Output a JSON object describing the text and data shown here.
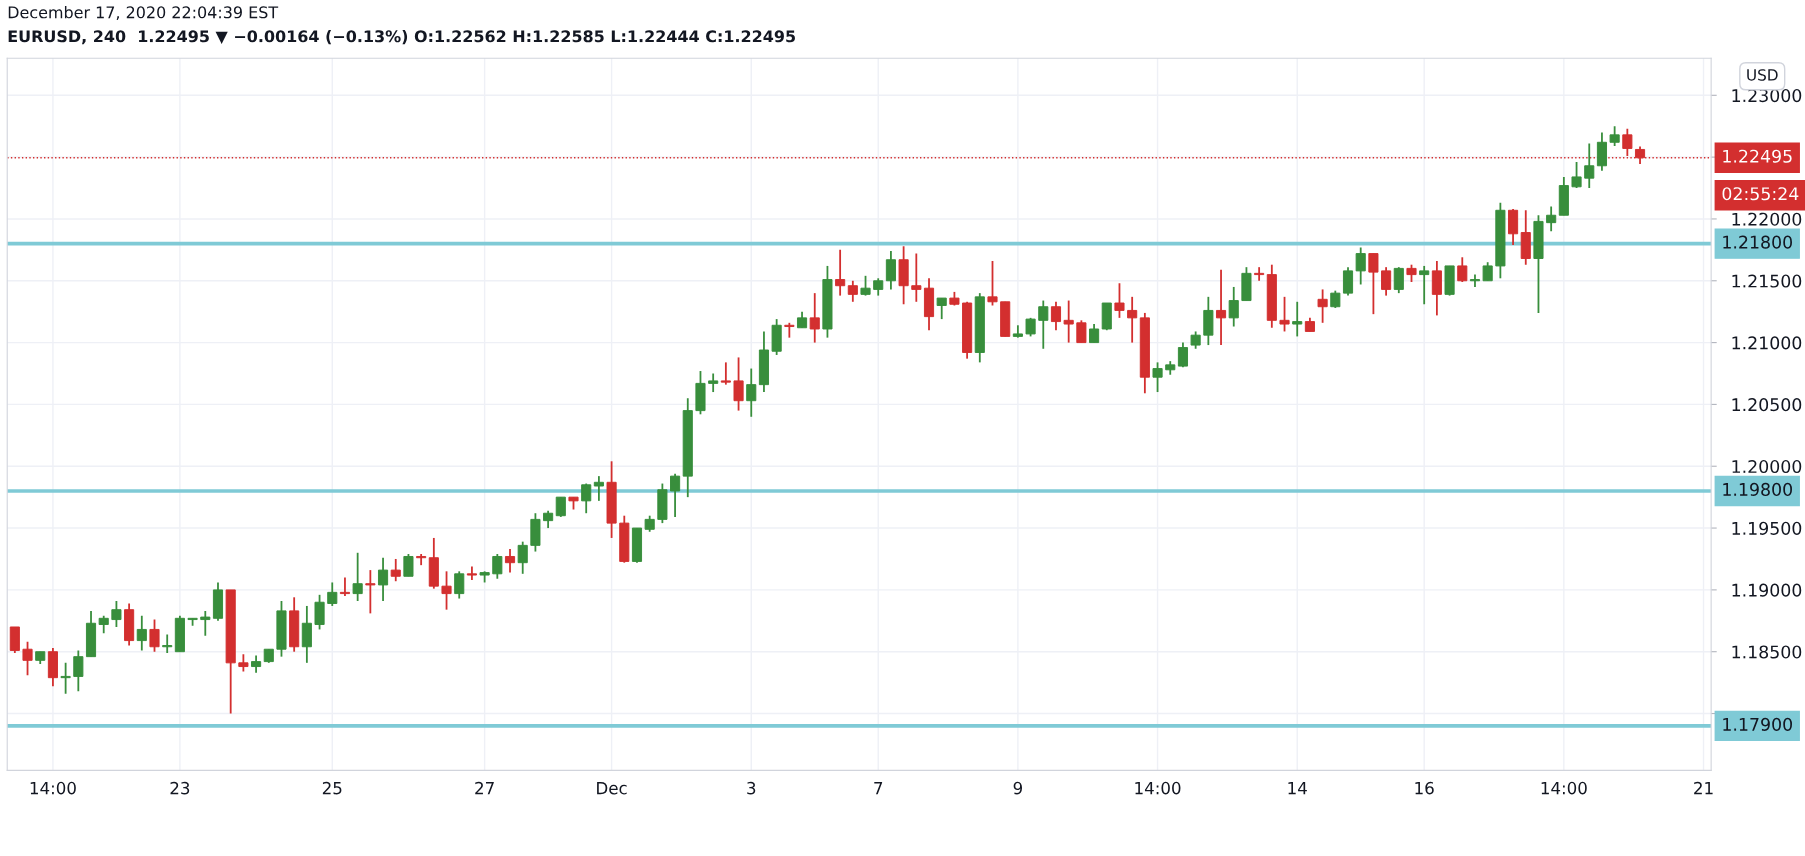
{
  "chart_data": {
    "type": "candlestick",
    "title": "December 17, 2020 22:04:39 EST",
    "subtitle": "EURUSD, 240  1.22495 ▼ −0.00164 (−0.13%) O:1.22562 H:1.22585 L:1.22444 C:1.22495",
    "ylabel": "USD",
    "categories": [
      null,
      null,
      null,
      "14:00",
      null,
      null,
      null,
      null,
      null,
      null,
      null,
      null,
      null,
      "23",
      null,
      null,
      null,
      null,
      null,
      null,
      null,
      null,
      null,
      null,
      null,
      "25",
      null,
      null,
      null,
      null,
      null,
      null,
      null,
      null,
      null,
      null,
      null,
      "27",
      null,
      null,
      null,
      null,
      null,
      null,
      null,
      null,
      null,
      "Dec",
      null,
      null,
      null,
      null,
      null,
      null,
      null,
      null,
      null,
      null,
      "3",
      null,
      null,
      null,
      null,
      null,
      null,
      null,
      null,
      null,
      "7",
      null,
      null,
      null,
      null,
      null,
      null,
      null,
      null,
      null,
      null,
      "9",
      null,
      null,
      null,
      null,
      null,
      null,
      null,
      null,
      null,
      null,
      "14:00",
      null,
      null,
      null,
      null,
      null,
      null,
      null,
      null,
      null,
      null,
      "14",
      null,
      null,
      null,
      null,
      null,
      null,
      null,
      null,
      null,
      "16",
      null,
      null,
      null,
      null,
      null,
      null,
      null,
      null,
      null,
      null,
      "14:00",
      null,
      null,
      null,
      null,
      null,
      null,
      null,
      null,
      null,
      null,
      "21"
    ],
    "ohlc": [
      [
        1.187,
        1.187,
        1.1849,
        1.1851
      ],
      [
        1.1852,
        1.1858,
        1.1831,
        1.1843
      ],
      [
        1.1843,
        1.185,
        1.184,
        1.185
      ],
      [
        1.185,
        1.1853,
        1.1822,
        1.1829
      ],
      [
        1.1829,
        1.1841,
        1.1816,
        1.183
      ],
      [
        1.183,
        1.1851,
        1.1818,
        1.1846
      ],
      [
        1.1846,
        1.1883,
        1.1846,
        1.1873
      ],
      [
        1.1872,
        1.1879,
        1.1865,
        1.1877
      ],
      [
        1.1876,
        1.1891,
        1.187,
        1.1884
      ],
      [
        1.1884,
        1.1889,
        1.1855,
        1.1859
      ],
      [
        1.1859,
        1.1879,
        1.1851,
        1.1868
      ],
      [
        1.1868,
        1.1876,
        1.185,
        1.1854
      ],
      [
        1.1854,
        1.1864,
        1.1849,
        1.1855
      ],
      [
        1.185,
        1.1879,
        1.185,
        1.1877
      ],
      [
        1.1876,
        1.1877,
        1.1871,
        1.1877
      ],
      [
        1.1876,
        1.1883,
        1.1863,
        1.1878
      ],
      [
        1.1877,
        1.1906,
        1.1875,
        1.19
      ],
      [
        1.19,
        1.19,
        1.18,
        1.1841
      ],
      [
        1.1841,
        1.1848,
        1.1834,
        1.1838
      ],
      [
        1.1838,
        1.1847,
        1.1833,
        1.1842
      ],
      [
        1.1842,
        1.1852,
        1.1841,
        1.1852
      ],
      [
        1.1852,
        1.1891,
        1.1846,
        1.1883
      ],
      [
        1.1883,
        1.1894,
        1.185,
        1.1854
      ],
      [
        1.1854,
        1.1887,
        1.1841,
        1.1873
      ],
      [
        1.1872,
        1.1896,
        1.1868,
        1.189
      ],
      [
        1.1889,
        1.1906,
        1.1887,
        1.1898
      ],
      [
        1.1898,
        1.191,
        1.1895,
        1.1897
      ],
      [
        1.1897,
        1.193,
        1.1891,
        1.1905
      ],
      [
        1.1905,
        1.1916,
        1.1881,
        1.1904
      ],
      [
        1.1904,
        1.1926,
        1.1891,
        1.1916
      ],
      [
        1.1916,
        1.1925,
        1.1907,
        1.1911
      ],
      [
        1.1911,
        1.1929,
        1.1911,
        1.1927
      ],
      [
        1.1927,
        1.1929,
        1.192,
        1.1926
      ],
      [
        1.1926,
        1.1942,
        1.1901,
        1.1903
      ],
      [
        1.1903,
        1.1915,
        1.1884,
        1.1897
      ],
      [
        1.1897,
        1.1915,
        1.1893,
        1.1913
      ],
      [
        1.1913,
        1.1919,
        1.1908,
        1.1912
      ],
      [
        1.1912,
        1.1915,
        1.1906,
        1.1914
      ],
      [
        1.1913,
        1.1929,
        1.1909,
        1.1927
      ],
      [
        1.1927,
        1.1933,
        1.1914,
        1.1922
      ],
      [
        1.1922,
        1.1939,
        1.1913,
        1.1936
      ],
      [
        1.1936,
        1.1962,
        1.1931,
        1.1957
      ],
      [
        1.1956,
        1.1964,
        1.195,
        1.1962
      ],
      [
        1.196,
        1.1975,
        1.1959,
        1.1975
      ],
      [
        1.1975,
        1.1975,
        1.1965,
        1.1972
      ],
      [
        1.1972,
        1.1986,
        1.1962,
        1.1985
      ],
      [
        1.1984,
        1.1992,
        1.1972,
        1.1987
      ],
      [
        1.1987,
        1.2004,
        1.1942,
        1.1954
      ],
      [
        1.1954,
        1.196,
        1.1922,
        1.1923
      ],
      [
        1.1923,
        1.195,
        1.1922,
        1.195
      ],
      [
        1.1949,
        1.196,
        1.1947,
        1.1957
      ],
      [
        1.1957,
        1.1986,
        1.1954,
        1.1981
      ],
      [
        1.198,
        1.1994,
        1.1959,
        1.1992
      ],
      [
        1.1992,
        1.2055,
        1.1975,
        1.2045
      ],
      [
        1.2045,
        1.2077,
        1.2042,
        1.2067
      ],
      [
        1.2067,
        1.2075,
        1.206,
        1.2069
      ],
      [
        1.2069,
        1.2084,
        1.2066,
        1.2068
      ],
      [
        1.2069,
        1.2088,
        1.2045,
        1.2053
      ],
      [
        1.2053,
        1.2079,
        1.204,
        1.2066
      ],
      [
        1.2066,
        1.2109,
        1.206,
        1.2094
      ],
      [
        1.2093,
        1.2119,
        1.209,
        1.2114
      ],
      [
        1.2114,
        1.2116,
        1.2104,
        1.2113
      ],
      [
        1.2112,
        1.2125,
        1.2112,
        1.212
      ],
      [
        1.212,
        1.214,
        1.21,
        1.2111
      ],
      [
        1.2111,
        1.2162,
        1.2104,
        1.2151
      ],
      [
        1.2151,
        1.2175,
        1.2138,
        1.2146
      ],
      [
        1.2146,
        1.215,
        1.2133,
        1.2139
      ],
      [
        1.2139,
        1.2154,
        1.2138,
        1.2144
      ],
      [
        1.2143,
        1.2152,
        1.2138,
        1.215
      ],
      [
        1.215,
        1.2174,
        1.2143,
        1.2167
      ],
      [
        1.2167,
        1.2178,
        1.2131,
        1.2146
      ],
      [
        1.2146,
        1.2172,
        1.2133,
        1.2143
      ],
      [
        1.2144,
        1.2152,
        1.211,
        1.2121
      ],
      [
        1.213,
        1.2136,
        1.2119,
        1.2136
      ],
      [
        1.2136,
        1.2141,
        1.213,
        1.2131
      ],
      [
        1.2132,
        1.2133,
        1.2087,
        1.2092
      ],
      [
        1.2092,
        1.214,
        1.2084,
        1.2137
      ],
      [
        1.2137,
        1.2166,
        1.213,
        1.2133
      ],
      [
        1.2133,
        1.2133,
        1.2105,
        1.2105
      ],
      [
        1.2105,
        1.2114,
        1.2104,
        1.2107
      ],
      [
        1.2107,
        1.212,
        1.2105,
        1.2119
      ],
      [
        1.2118,
        1.2134,
        1.2095,
        1.2129
      ],
      [
        1.2129,
        1.2133,
        1.211,
        1.2117
      ],
      [
        1.2118,
        1.2134,
        1.21,
        1.2115
      ],
      [
        1.2116,
        1.2118,
        1.21,
        1.21
      ],
      [
        1.21,
        1.2115,
        1.21,
        1.2111
      ],
      [
        1.2111,
        1.2132,
        1.211,
        1.2132
      ],
      [
        1.2132,
        1.2148,
        1.212,
        1.2126
      ],
      [
        1.2126,
        1.2137,
        1.21,
        1.212
      ],
      [
        1.212,
        1.2124,
        1.2059,
        1.2072
      ],
      [
        1.2072,
        1.2084,
        1.206,
        1.2079
      ],
      [
        1.2078,
        1.2085,
        1.2074,
        1.2082
      ],
      [
        1.2081,
        1.21,
        1.208,
        1.2096
      ],
      [
        1.2098,
        1.2109,
        1.2095,
        1.2106
      ],
      [
        1.2106,
        1.2137,
        1.2098,
        1.2126
      ],
      [
        1.2126,
        1.2159,
        1.2098,
        1.212
      ],
      [
        1.212,
        1.2145,
        1.2113,
        1.2134
      ],
      [
        1.2134,
        1.2161,
        1.2134,
        1.2156
      ],
      [
        1.2156,
        1.2161,
        1.215,
        1.2155
      ],
      [
        1.2155,
        1.2163,
        1.2112,
        1.2118
      ],
      [
        1.2118,
        1.2137,
        1.2109,
        1.2115
      ],
      [
        1.2115,
        1.2133,
        1.2105,
        1.2117
      ],
      [
        1.2117,
        1.212,
        1.2109,
        1.2109
      ],
      [
        1.2135,
        1.2143,
        1.2116,
        1.2129
      ],
      [
        1.2129,
        1.2142,
        1.2128,
        1.214
      ],
      [
        1.214,
        1.2161,
        1.2138,
        1.2158
      ],
      [
        1.2158,
        1.2177,
        1.2147,
        1.2172
      ],
      [
        1.2172,
        1.2172,
        1.2123,
        1.2157
      ],
      [
        1.2158,
        1.2161,
        1.2138,
        1.2143
      ],
      [
        1.2143,
        1.2161,
        1.214,
        1.216
      ],
      [
        1.216,
        1.2163,
        1.2149,
        1.2155
      ],
      [
        1.2155,
        1.2162,
        1.2131,
        1.2158
      ],
      [
        1.2158,
        1.2166,
        1.2122,
        1.2139
      ],
      [
        1.2139,
        1.2162,
        1.2138,
        1.2162
      ],
      [
        1.2162,
        1.2169,
        1.2149,
        1.215
      ],
      [
        1.215,
        1.2155,
        1.2145,
        1.2151
      ],
      [
        1.215,
        1.2165,
        1.215,
        1.2162
      ],
      [
        1.2162,
        1.2213,
        1.2152,
        1.2207
      ],
      [
        1.2207,
        1.2208,
        1.2179,
        1.2188
      ],
      [
        1.2189,
        1.2207,
        1.2163,
        1.2168
      ],
      [
        1.2168,
        1.2203,
        1.2124,
        1.2198
      ],
      [
        1.2197,
        1.221,
        1.219,
        1.2203
      ],
      [
        1.2203,
        1.2234,
        1.2203,
        1.2227
      ],
      [
        1.2226,
        1.2246,
        1.2225,
        1.2234
      ],
      [
        1.2233,
        1.2261,
        1.2225,
        1.2243
      ],
      [
        1.2243,
        1.227,
        1.2239,
        1.2262
      ],
      [
        1.2262,
        1.2275,
        1.2259,
        1.2268
      ],
      [
        1.2268,
        1.2273,
        1.2251,
        1.2257
      ],
      [
        1.22562,
        1.22585,
        1.22444,
        1.22495
      ],
      null,
      null,
      null,
      null,
      null
    ],
    "colors": [
      "#d32f2f",
      "#d32f2f",
      "#388e3c",
      "#d32f2f",
      "#388e3c",
      "#388e3c",
      "#388e3c",
      "#388e3c",
      "#388e3c",
      "#d32f2f",
      "#388e3c",
      "#d32f2f",
      "#388e3c",
      "#388e3c",
      "#388e3c",
      "#388e3c",
      "#388e3c",
      "#d32f2f",
      "#d32f2f",
      "#388e3c",
      "#388e3c",
      "#388e3c",
      "#d32f2f",
      "#388e3c",
      "#388e3c",
      "#388e3c",
      "#d32f2f",
      "#388e3c",
      "#d32f2f",
      "#388e3c",
      "#d32f2f",
      "#388e3c",
      "#d32f2f",
      "#d32f2f",
      "#d32f2f",
      "#388e3c",
      "#d32f2f",
      "#388e3c",
      "#388e3c",
      "#d32f2f",
      "#388e3c",
      "#388e3c",
      "#388e3c",
      "#388e3c",
      "#d32f2f",
      "#388e3c",
      "#388e3c",
      "#d32f2f",
      "#d32f2f",
      "#388e3c",
      "#388e3c",
      "#388e3c",
      "#388e3c",
      "#388e3c",
      "#388e3c",
      "#388e3c",
      "#d32f2f",
      "#d32f2f",
      "#388e3c",
      "#388e3c",
      "#388e3c",
      "#d32f2f",
      "#388e3c",
      "#d32f2f",
      "#388e3c",
      "#d32f2f",
      "#d32f2f",
      "#388e3c",
      "#388e3c",
      "#388e3c",
      "#d32f2f",
      "#d32f2f",
      "#d32f2f",
      "#388e3c",
      "#d32f2f",
      "#d32f2f",
      "#388e3c",
      "#d32f2f",
      "#d32f2f",
      "#388e3c",
      "#388e3c",
      "#388e3c",
      "#d32f2f",
      "#d32f2f",
      "#d32f2f",
      "#388e3c",
      "#388e3c",
      "#d32f2f",
      "#d32f2f",
      "#d32f2f",
      "#388e3c",
      "#388e3c",
      "#388e3c",
      "#388e3c",
      "#388e3c",
      "#d32f2f",
      "#388e3c",
      "#388e3c",
      "#d32f2f",
      "#d32f2f",
      "#d32f2f",
      "#388e3c",
      "#d32f2f",
      "#d32f2f",
      "#388e3c",
      "#388e3c",
      "#388e3c",
      "#d32f2f",
      "#d32f2f",
      "#388e3c",
      "#d32f2f",
      "#388e3c",
      "#d32f2f",
      "#388e3c",
      "#d32f2f",
      "#388e3c",
      "#388e3c",
      "#388e3c",
      "#d32f2f",
      "#d32f2f",
      "#388e3c",
      "#388e3c",
      "#388e3c",
      "#388e3c",
      "#388e3c",
      "#388e3c",
      "#388e3c",
      "#d32f2f",
      "#d32f2f",
      null,
      null,
      null,
      null,
      null
    ],
    "ylim": [
      1.1754,
      1.233
    ],
    "yticks": [
      {
        "value": 1.18,
        "label": null
      },
      {
        "value": 1.185,
        "label": "1.18500"
      },
      {
        "value": 1.19,
        "label": "1.19000"
      },
      {
        "value": 1.195,
        "label": "1.19500"
      },
      {
        "value": 1.2,
        "label": "1.20000"
      },
      {
        "value": 1.205,
        "label": "1.20500"
      },
      {
        "value": 1.21,
        "label": "1.21000"
      },
      {
        "value": 1.215,
        "label": "1.21500"
      },
      {
        "value": 1.22,
        "label": "1.22000"
      },
      {
        "value": 1.225,
        "label": null
      },
      {
        "value": 1.23,
        "label": "1.23000"
      }
    ],
    "ref_lines": [
      {
        "axis": "y",
        "value": 1.218,
        "label": "1.21800",
        "color": "#7fcad6",
        "line_style": "solid"
      },
      {
        "axis": "y",
        "value": 1.198,
        "label": "1.19800",
        "color": "#7fcad6",
        "line_style": "solid"
      },
      {
        "axis": "y",
        "value": 1.179,
        "label": "1.17900",
        "color": "#7fcad6",
        "line_style": "solid"
      },
      {
        "axis": "y",
        "value": 1.22495,
        "label": "1.22495",
        "color": "#d32f2f",
        "line_style": "dotted"
      }
    ],
    "annotations": [
      "02:55:24"
    ],
    "grid": true
  }
}
